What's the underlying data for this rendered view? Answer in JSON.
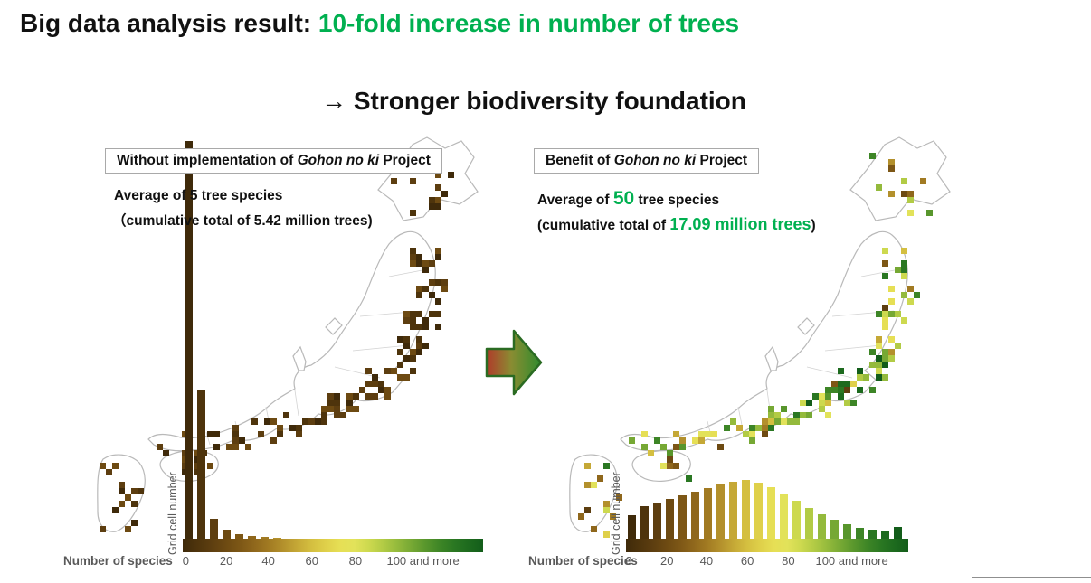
{
  "title": {
    "prefix": "Big data analysis result: ",
    "highlight": "10-fold increase in number of trees"
  },
  "subtitle": "→ Stronger biodiversity foundation",
  "colors": {
    "accent_green": "#00B050",
    "text_black": "#111111",
    "axis_gray": "#595959",
    "map_outline": "#b9b9b9",
    "box_border": "#a9a9a9",
    "arrow_red": "#b03a2a",
    "arrow_mid": "#8a8c32",
    "arrow_green": "#2f8b2d",
    "arrow_border": "#2a6b22"
  },
  "colormap": [
    "#3f2a0a",
    "#4e340c",
    "#5d3e10",
    "#6d4a12",
    "#7d5716",
    "#8f671c",
    "#a17a22",
    "#b3902c",
    "#c5a836",
    "#d4bf40",
    "#dfd04a",
    "#e6df55",
    "#e2e25a",
    "#cdd94f",
    "#b2cb45",
    "#94ba3c",
    "#76a834",
    "#58962c",
    "#3d8526",
    "#2a7722",
    "#1d6a1e",
    "#135d1a"
  ],
  "axis": {
    "xlabel": "Number of species",
    "ylabel": "Grid cell number",
    "ticks": [
      {
        "label": "0",
        "pos": 1
      },
      {
        "label": "20",
        "pos": 14.5
      },
      {
        "label": "40",
        "pos": 28.5
      },
      {
        "label": "60",
        "pos": 43
      },
      {
        "label": "80",
        "pos": 57.5
      },
      {
        "label": "100 and more",
        "pos": 80
      }
    ]
  },
  "left_panel": {
    "box_title": {
      "prefix": "Without implementation of ",
      "italic": "Gohon no ki",
      "suffix": " Project"
    },
    "avg_line": "Average of 5 tree species",
    "total_line": "（cumulative total of 5.42 million trees)"
  },
  "right_panel": {
    "box_title": {
      "prefix": "Benefit of ",
      "italic": "Gohon no ki",
      "suffix": " Project"
    },
    "avg_prefix": "Average of ",
    "avg_highlight": "50",
    "avg_suffix": " tree species",
    "total_prefix": "(cumulative total of ",
    "total_highlight": "17.09 million trees",
    "total_suffix": ")"
  },
  "chart_data": [
    {
      "type": "bar",
      "id": "without",
      "title": "Without implementation of Gohon no ki Project",
      "xlabel": "Number of species",
      "ylabel": "Grid cell number",
      "x_tick_labels": [
        "0",
        "20",
        "40",
        "60",
        "80",
        "100 and more"
      ],
      "bin_width_species": 5,
      "x_bin_starts": [
        0,
        5,
        10,
        15,
        20,
        25,
        30,
        35,
        40,
        45,
        50,
        55,
        60,
        65,
        70,
        75,
        80,
        85,
        90,
        95,
        100,
        105
      ],
      "y_axis_note": "No numeric y scale shown; values are relative bar heights, first bar clipped by top of figure",
      "values": [
        440,
        165,
        22,
        10,
        5,
        3,
        2,
        1,
        0,
        0,
        0,
        0,
        0,
        0,
        0,
        0,
        0,
        0,
        0,
        0,
        0,
        0
      ],
      "annotations": [
        "Average of 5 tree species",
        "cumulative total of 5.42 million trees"
      ],
      "legend": "continuous brown-to-green colormap along species axis"
    },
    {
      "type": "bar",
      "id": "benefit",
      "title": "Benefit of Gohon no ki Project",
      "xlabel": "Number of species",
      "ylabel": "Grid cell number",
      "x_tick_labels": [
        "0",
        "20",
        "40",
        "60",
        "80",
        "100 and more"
      ],
      "bin_width_species": 5,
      "x_bin_starts": [
        0,
        5,
        10,
        15,
        20,
        25,
        30,
        35,
        40,
        45,
        50,
        55,
        60,
        65,
        70,
        75,
        80,
        85,
        90,
        95,
        100,
        105
      ],
      "y_axis_note": "No numeric y scale shown; values are relative bar heights, distribution peaks near 45-55 species",
      "values": [
        26,
        36,
        40,
        44,
        48,
        52,
        56,
        60,
        63,
        65,
        62,
        57,
        50,
        42,
        34,
        27,
        21,
        16,
        12,
        10,
        9,
        13
      ],
      "annotations": [
        "Average of 50 tree species",
        "cumulative total of 17.09 million trees"
      ],
      "legend": "continuous brown-to-green colormap along species axis"
    }
  ],
  "maps": {
    "left_note": "Japan map, grid cells all dark brown (few species per cell)",
    "right_note": "Japan map, grid cells brown / yellow / green, greener clusters around central Honshu"
  }
}
